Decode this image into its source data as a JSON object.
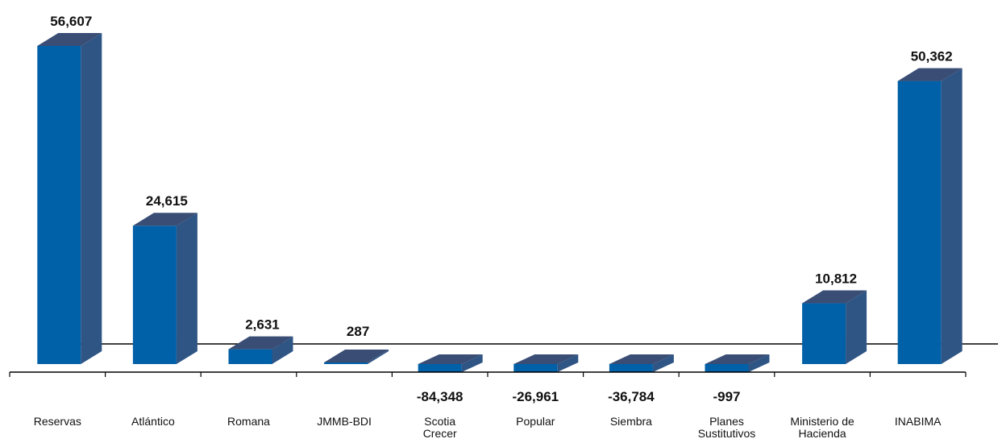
{
  "chart_data": {
    "type": "bar",
    "categories": [
      [
        "Reservas"
      ],
      [
        "Atlántico"
      ],
      [
        "Romana"
      ],
      [
        "JMMB-BDI"
      ],
      [
        "Scotia",
        "Crecer"
      ],
      [
        "Popular"
      ],
      [
        "Siembra"
      ],
      [
        "Planes",
        "Sustitutivos"
      ],
      [
        "Ministerio de",
        "Hacienda"
      ],
      [
        "INABIMA"
      ]
    ],
    "values": [
      56607,
      24615,
      2631,
      287,
      -84348,
      -26961,
      -36784,
      -997,
      10812,
      50362
    ],
    "value_labels": [
      "56,607",
      "24,615",
      "2,631",
      "287",
      "-84,348",
      "-26,961",
      "-36,784",
      "-997",
      "10,812",
      "50,362"
    ],
    "colors": {
      "front": "#0060A8",
      "side": "#2F5585",
      "top": "#394D75",
      "axis": "#000000"
    },
    "grid": false,
    "legend": "none"
  }
}
